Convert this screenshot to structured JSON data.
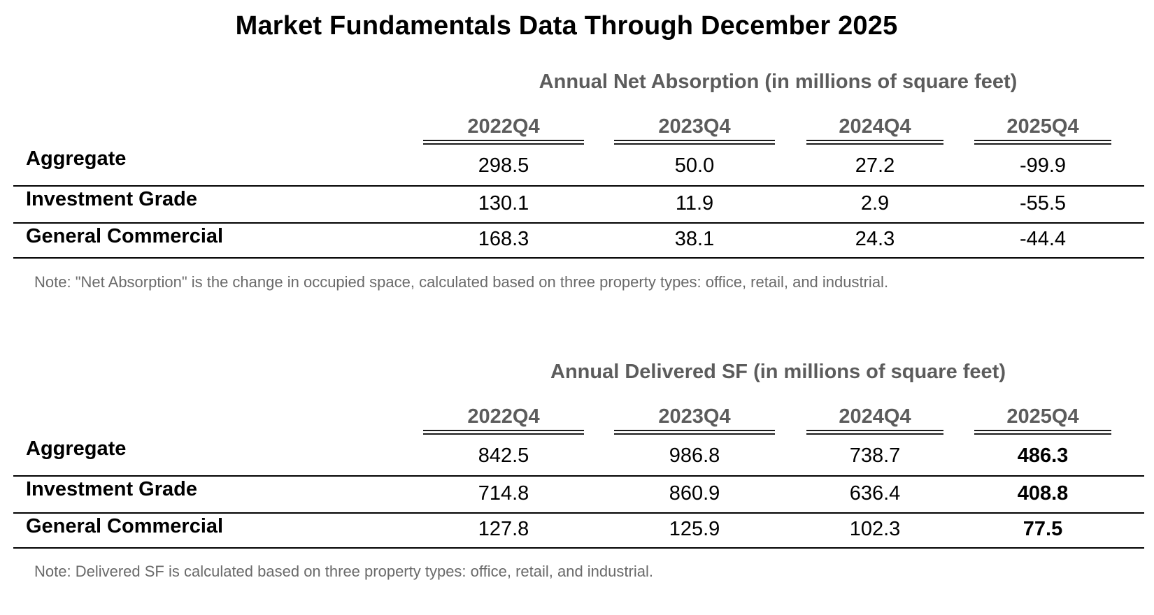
{
  "title": "Market Fundamentals Data Through December 2025",
  "tables": [
    {
      "title": "Annual Net Absorption (in millions of square feet)",
      "columns": [
        "2022Q4",
        "2023Q4",
        "2024Q4",
        "2025Q4"
      ],
      "rows": [
        {
          "label": "Aggregate",
          "values": [
            "298.5",
            "50.0",
            "27.2",
            "-99.9"
          ]
        },
        {
          "label": "Investment Grade",
          "values": [
            "130.1",
            "11.9",
            "2.9",
            "-55.5"
          ]
        },
        {
          "label": "General Commercial",
          "values": [
            "168.3",
            "38.1",
            "24.3",
            "-44.4"
          ]
        }
      ],
      "note": "Note: \"Net Absorption\" is the change in occupied space, calculated based on three property types: office, retail, and industrial."
    },
    {
      "title": "Annual Delivered SF (in millions of square feet)",
      "columns": [
        "2022Q4",
        "2023Q4",
        "2024Q4",
        "2025Q4"
      ],
      "rows": [
        {
          "label": "Aggregate",
          "values": [
            "842.5",
            "986.8",
            "738.7",
            "486.3"
          ]
        },
        {
          "label": "Investment Grade",
          "values": [
            "714.8",
            "860.9",
            "636.4",
            "408.8"
          ]
        },
        {
          "label": "General Commercial",
          "values": [
            "127.8",
            "125.9",
            "102.3",
            "77.5"
          ]
        }
      ],
      "note": "Note: Delivered SF is calculated based on three property types: office, retail, and industrial."
    }
  ]
}
